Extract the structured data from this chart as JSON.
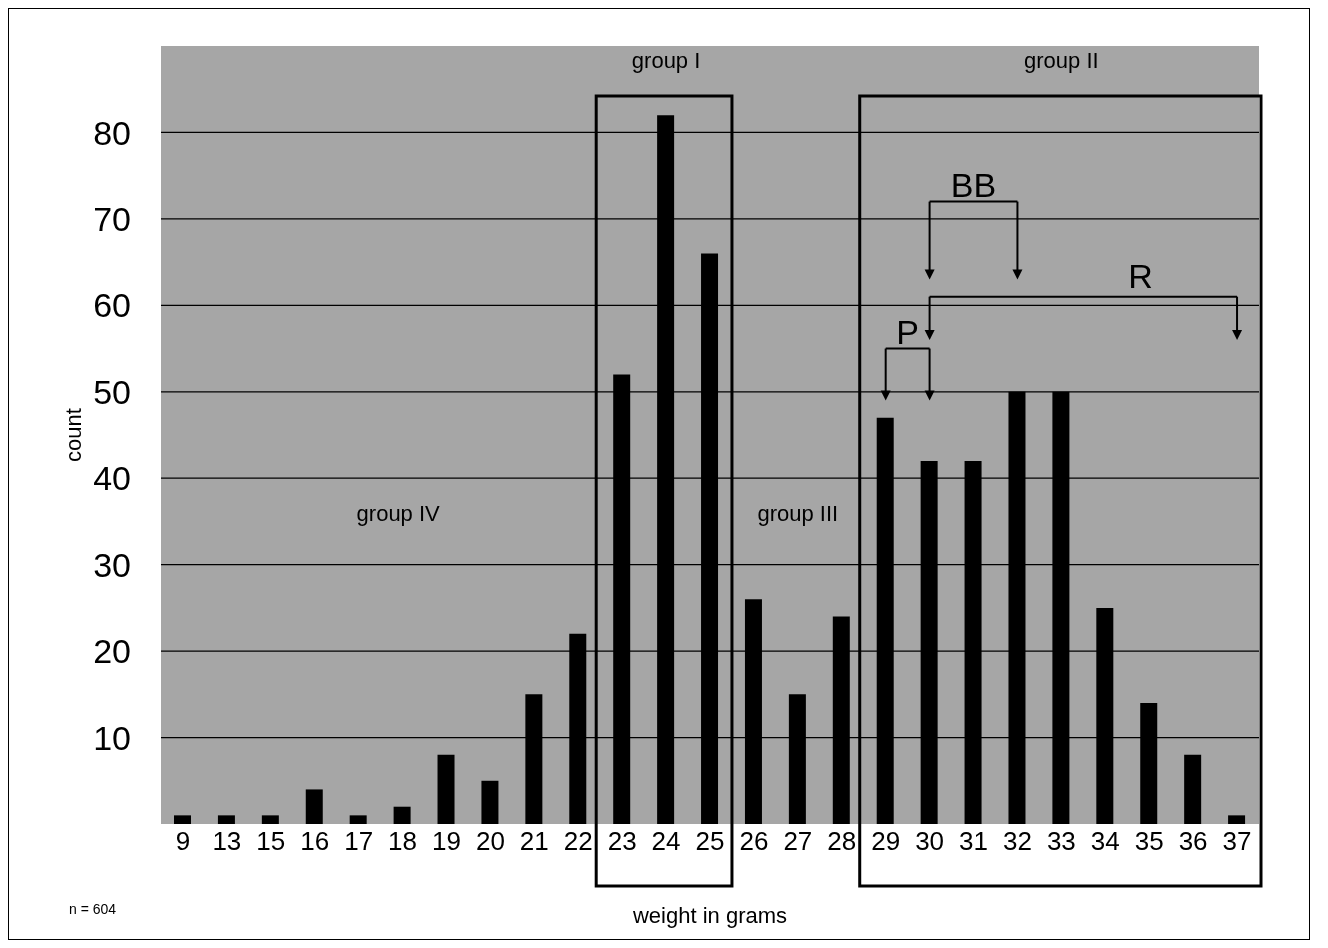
{
  "chart_data": {
    "type": "bar",
    "xlabel": "weight in grams",
    "ylabel": "count",
    "categories": [
      "9",
      "13",
      "15",
      "16",
      "17",
      "18",
      "19",
      "20",
      "21",
      "22",
      "23",
      "24",
      "25",
      "26",
      "27",
      "28",
      "29",
      "30",
      "31",
      "32",
      "33",
      "34",
      "35",
      "36",
      "37"
    ],
    "values": [
      1,
      1,
      1,
      4,
      1,
      2,
      8,
      5,
      15,
      22,
      52,
      82,
      66,
      26,
      15,
      24,
      47,
      42,
      42,
      50,
      50,
      25,
      14,
      8,
      1
    ],
    "color": "#000000",
    "ylim": [
      0,
      90
    ],
    "yticks": [
      10,
      20,
      30,
      40,
      50,
      60,
      70,
      80
    ],
    "grid": "y",
    "annotations": [
      "group I",
      "group II",
      "group III",
      "group IV",
      "BB",
      "R",
      "P",
      "n = 604"
    ]
  }
}
